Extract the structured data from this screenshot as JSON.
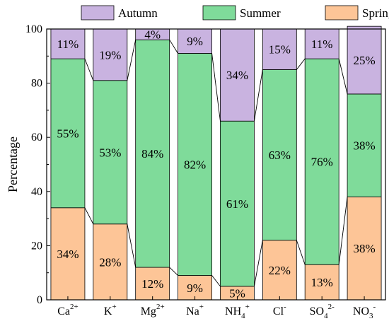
{
  "chart_data": {
    "type": "bar",
    "stacked": true,
    "ylabel": "Percentage",
    "ylim": [
      0,
      100
    ],
    "yticks": [
      0,
      20,
      40,
      60,
      80,
      100
    ],
    "categories": [
      {
        "base": "Ca",
        "sup": "2+",
        "sub": ""
      },
      {
        "base": "K",
        "sup": "+",
        "sub": ""
      },
      {
        "base": "Mg",
        "sup": "2+",
        "sub": ""
      },
      {
        "base": "Na",
        "sup": "+",
        "sub": ""
      },
      {
        "base": "NH",
        "sub": "4",
        "sup": "+"
      },
      {
        "base": "Cl",
        "sup": "-",
        "sub": ""
      },
      {
        "base": "SO",
        "sub": "4",
        "sup": "2-"
      },
      {
        "base": "NO",
        "sub": "3",
        "sup": "-"
      }
    ],
    "series": [
      {
        "name": "Spring",
        "color": "#fdc597",
        "values": [
          34,
          28,
          12,
          9,
          5,
          22,
          13,
          38
        ]
      },
      {
        "name": "Summer",
        "color": "#7fdb9a",
        "values": [
          55,
          53,
          84,
          82,
          61,
          63,
          76,
          38
        ]
      },
      {
        "name": "Autumn",
        "color": "#c9b3e0",
        "values": [
          11,
          19,
          4,
          9,
          34,
          15,
          11,
          25
        ]
      }
    ],
    "legend": {
      "placement": "top",
      "order": [
        "Autumn",
        "Summer",
        "Spring"
      ]
    },
    "grid": false
  }
}
